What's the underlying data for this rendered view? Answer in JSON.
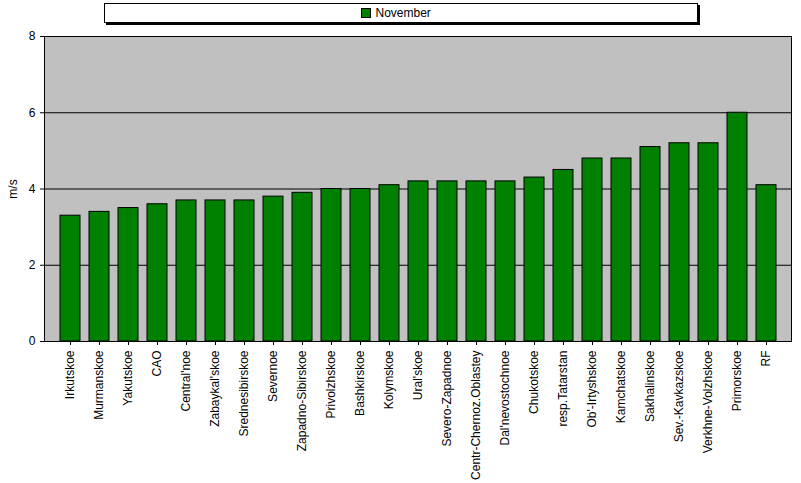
{
  "chart_data": {
    "type": "bar",
    "categories": [
      "Irkutskoe",
      "Murmanskoe",
      "Yakutskoe",
      "CAO",
      "Central'noe",
      "Zabaykal'skoe",
      "Srednesibirskoe",
      "Severnoe",
      "Zapadno-Sibirskoe",
      "Privolzhskoe",
      "Bashkirskoe",
      "Kolymskoe",
      "Ural'skoe",
      "Severo-Zapadnoe",
      "Centr-Chernoz.Oblastey",
      "Dal'nevostochnoe",
      "Chukotskoe",
      "resp.Tatarstan",
      "Ob'-Irtyshskoe",
      "Kamchatskoe",
      "Sakhalinskoe",
      "Sev.-Kavkazskoe",
      "Verkhne-Volzhskoe",
      "Primorskoe",
      "RF"
    ],
    "series": [
      {
        "name": "November",
        "color": "#008000",
        "values": [
          3.3,
          3.4,
          3.5,
          3.6,
          3.7,
          3.7,
          3.7,
          3.8,
          3.9,
          4.0,
          4.0,
          4.1,
          4.2,
          4.2,
          4.2,
          4.2,
          4.3,
          4.5,
          4.8,
          4.8,
          5.1,
          5.2,
          5.2,
          6.0,
          4.1
        ]
      }
    ],
    "y_label": "m/s",
    "ylim": [
      0,
      8
    ],
    "yticks": [
      0,
      2,
      4,
      6,
      8
    ],
    "grid": true,
    "legend": "top"
  }
}
